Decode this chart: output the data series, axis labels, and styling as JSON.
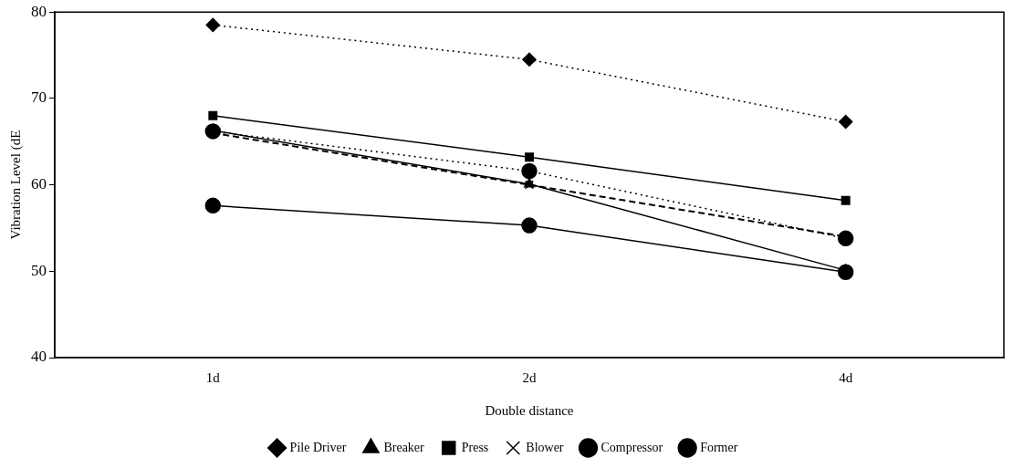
{
  "chart_data": {
    "type": "line",
    "xlabel": "Double distance",
    "ylabel": "Vibration Level (dE",
    "categories": [
      "1d",
      "2d",
      "4d"
    ],
    "ylim": [
      40,
      80
    ],
    "yticks": [
      40,
      50,
      60,
      70,
      80
    ],
    "grid": false,
    "legend": "bottom",
    "series": [
      {
        "name": "Pile Driver",
        "color": "#000000",
        "values": [
          78.5,
          74.5,
          67.3
        ],
        "marker": "diamond",
        "line_style": "dotted"
      },
      {
        "name": "Breaker",
        "color": "#000000",
        "values": [
          66.3,
          60.1,
          50.1
        ],
        "marker": "triangle",
        "line_style": "solid"
      },
      {
        "name": "Press",
        "color": "#000000",
        "values": [
          68.0,
          63.2,
          58.2
        ],
        "marker": "square",
        "line_style": "solid"
      },
      {
        "name": "Blower",
        "color": "#000000",
        "values": [
          66.0,
          60.0,
          54.0
        ],
        "marker": "cross",
        "line_style": "dashed"
      },
      {
        "name": "Compressor",
        "color": "#000000",
        "values": [
          66.2,
          61.6,
          53.8
        ],
        "marker": "circle",
        "line_style": "dotted"
      },
      {
        "name": "Former",
        "color": "#000000",
        "values": [
          57.6,
          55.3,
          49.9
        ],
        "marker": "circle",
        "line_style": "solid"
      }
    ]
  }
}
